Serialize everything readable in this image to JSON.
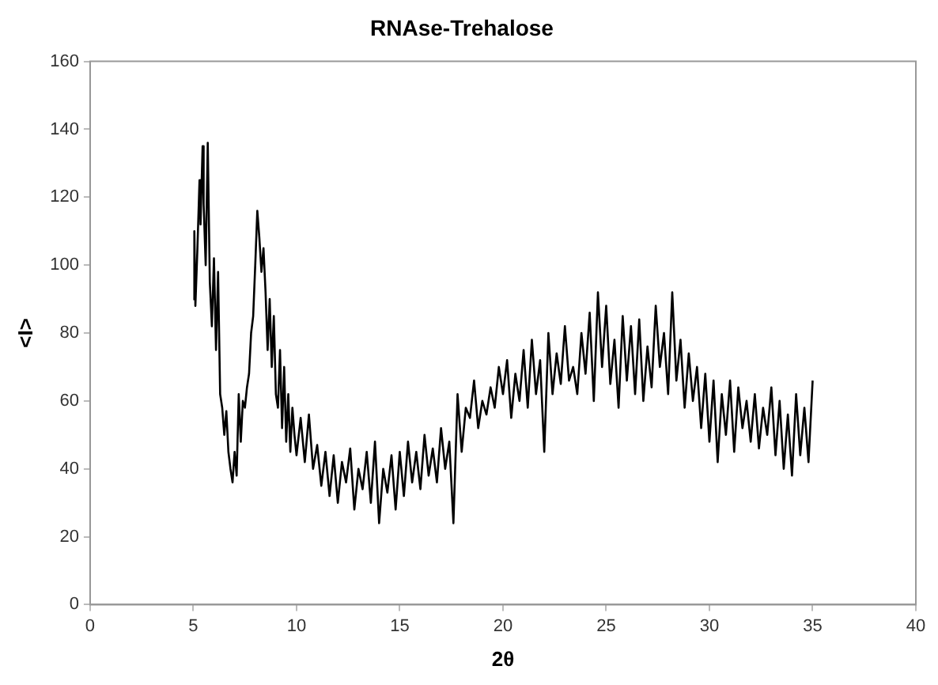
{
  "chart_data": {
    "type": "line",
    "title": "RNAse-Trehalose",
    "xlabel": "2θ",
    "ylabel": "<I>",
    "xlim": [
      0,
      40
    ],
    "xticks": [
      0,
      5,
      10,
      15,
      20,
      25,
      30,
      35,
      40
    ],
    "ylim": [
      0,
      160
    ],
    "yticks": [
      0,
      20,
      40,
      60,
      80,
      100,
      120,
      140,
      160
    ],
    "grid": false,
    "legend": false,
    "marker": "none",
    "line_style": "solid",
    "series": [
      {
        "color": "#000000",
        "x": [
          5.0,
          5.05,
          5.1,
          5.2,
          5.3,
          5.35,
          5.45,
          5.5,
          5.6,
          5.7,
          5.8,
          5.9,
          6.0,
          6.1,
          6.2,
          6.3,
          6.4,
          6.5,
          6.6,
          6.7,
          6.8,
          6.9,
          7.0,
          7.1,
          7.2,
          7.3,
          7.4,
          7.5,
          7.6,
          7.7,
          7.8,
          7.9,
          8.0,
          8.1,
          8.2,
          8.3,
          8.4,
          8.5,
          8.6,
          8.7,
          8.8,
          8.9,
          9.0,
          9.1,
          9.2,
          9.3,
          9.4,
          9.5,
          9.6,
          9.7,
          9.8,
          9.9,
          10.0,
          10.2,
          10.4,
          10.6,
          10.8,
          11.0,
          11.2,
          11.4,
          11.6,
          11.8,
          12.0,
          12.2,
          12.4,
          12.6,
          12.8,
          13.0,
          13.2,
          13.4,
          13.6,
          13.8,
          14.0,
          14.2,
          14.4,
          14.6,
          14.8,
          15.0,
          15.2,
          15.4,
          15.6,
          15.8,
          16.0,
          16.2,
          16.4,
          16.6,
          16.8,
          17.0,
          17.2,
          17.4,
          17.6,
          17.8,
          18.0,
          18.2,
          18.4,
          18.6,
          18.8,
          19.0,
          19.2,
          19.4,
          19.6,
          19.8,
          20.0,
          20.2,
          20.4,
          20.6,
          20.8,
          21.0,
          21.2,
          21.4,
          21.6,
          21.8,
          22.0,
          22.2,
          22.4,
          22.6,
          22.8,
          23.0,
          23.2,
          23.4,
          23.6,
          23.8,
          24.0,
          24.2,
          24.4,
          24.6,
          24.8,
          25.0,
          25.2,
          25.4,
          25.6,
          25.8,
          26.0,
          26.2,
          26.4,
          26.6,
          26.8,
          27.0,
          27.2,
          27.4,
          27.6,
          27.8,
          28.0,
          28.2,
          28.4,
          28.6,
          28.8,
          29.0,
          29.2,
          29.4,
          29.6,
          29.8,
          30.0,
          30.2,
          30.4,
          30.6,
          30.8,
          31.0,
          31.2,
          31.4,
          31.6,
          31.8,
          32.0,
          32.2,
          32.4,
          32.6,
          32.8,
          33.0,
          33.2,
          33.4,
          33.6,
          33.8,
          34.0,
          34.2,
          34.4,
          34.6,
          34.8,
          35.0
        ],
        "values": [
          90,
          110,
          88,
          105,
          125,
          112,
          135,
          118,
          100,
          136,
          95,
          82,
          102,
          75,
          98,
          62,
          58,
          50,
          57,
          45,
          40,
          36,
          45,
          38,
          62,
          48,
          60,
          58,
          64,
          68,
          80,
          85,
          100,
          116,
          108,
          98,
          105,
          92,
          75,
          90,
          70,
          85,
          62,
          58,
          75,
          52,
          70,
          48,
          62,
          45,
          58,
          50,
          44,
          55,
          42,
          56,
          40,
          47,
          35,
          45,
          32,
          44,
          30,
          42,
          36,
          46,
          28,
          40,
          34,
          45,
          30,
          48,
          24,
          40,
          33,
          44,
          28,
          45,
          32,
          48,
          36,
          45,
          34,
          50,
          38,
          46,
          36,
          52,
          40,
          48,
          24,
          62,
          45,
          58,
          55,
          66,
          52,
          60,
          56,
          64,
          58,
          70,
          62,
          72,
          55,
          68,
          60,
          75,
          58,
          78,
          62,
          72,
          45,
          80,
          62,
          74,
          65,
          82,
          66,
          70,
          62,
          80,
          68,
          86,
          60,
          92,
          70,
          88,
          65,
          78,
          58,
          85,
          66,
          82,
          62,
          84,
          60,
          76,
          64,
          88,
          70,
          80,
          62,
          92,
          66,
          78,
          58,
          74,
          60,
          70,
          52,
          68,
          48,
          66,
          42,
          62,
          50,
          66,
          45,
          64,
          52,
          60,
          48,
          62,
          46,
          58,
          50,
          64,
          44,
          60,
          40,
          56,
          38,
          62,
          44,
          58,
          42,
          66
        ]
      }
    ]
  }
}
